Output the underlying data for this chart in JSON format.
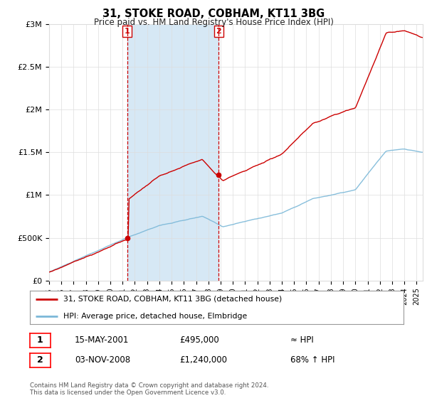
{
  "title": "31, STOKE ROAD, COBHAM, KT11 3BG",
  "subtitle": "Price paid vs. HM Land Registry's House Price Index (HPI)",
  "legend_line1": "31, STOKE ROAD, COBHAM, KT11 3BG (detached house)",
  "legend_line2": "HPI: Average price, detached house, Elmbridge",
  "annotation1_date": "15-MAY-2001",
  "annotation1_price": "£495,000",
  "annotation1_hpi": "≈ HPI",
  "annotation2_date": "03-NOV-2008",
  "annotation2_price": "£1,240,000",
  "annotation2_hpi": "68% ↑ HPI",
  "footer": "Contains HM Land Registry data © Crown copyright and database right 2024.\nThis data is licensed under the Open Government Licence v3.0.",
  "hpi_color": "#7bb8d8",
  "price_color": "#cc0000",
  "shaded_color": "#d6e8f5",
  "background_color": "#ffffff",
  "ylim": [
    0,
    3000000
  ],
  "yticks": [
    0,
    500000,
    1000000,
    1500000,
    2000000,
    2500000,
    3000000
  ],
  "ytick_labels": [
    "£0",
    "£500K",
    "£1M",
    "£1.5M",
    "£2M",
    "£2.5M",
    "£3M"
  ],
  "sale1_year": 2001.37,
  "sale1_price": 495000,
  "sale2_year": 2008.84,
  "sale2_price": 1240000,
  "xmin": 1995.0,
  "xmax": 2025.5,
  "grid_color": "#dddddd"
}
